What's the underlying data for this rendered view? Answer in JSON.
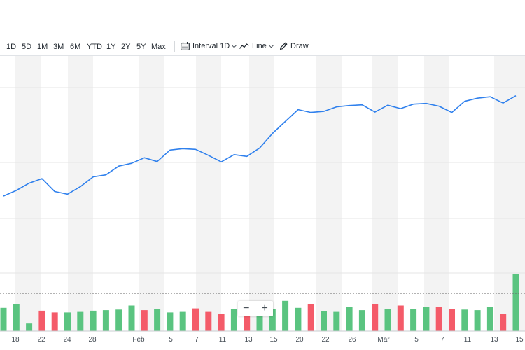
{
  "toolbar": {
    "ranges": [
      "1D",
      "5D",
      "1M",
      "3M",
      "6M",
      "YTD",
      "1Y",
      "2Y",
      "5Y",
      "Max"
    ],
    "interval_label": "Interval",
    "interval_value": "1D",
    "chart_type_label": "Line",
    "draw_label": "Draw",
    "icons": {
      "interval": "calendar-icon",
      "chart_type": "line-chart-icon",
      "draw": "pencil-icon",
      "caret": "chevron-down-icon"
    }
  },
  "zoom": {
    "minus": "−",
    "plus": "+"
  },
  "colors": {
    "line": "#2f80ed",
    "volume_up": "#5ac480",
    "volume_down": "#f45b69",
    "stripe": "#f3f3f3",
    "grid": "#e6e6e6",
    "axis_text": "#464e56"
  },
  "chart_data": {
    "type": "line",
    "x_ticks": [
      "18",
      "22",
      "24",
      "28",
      "Feb",
      "5",
      "7",
      "11",
      "13",
      "15",
      "20",
      "22",
      "26",
      "Mar",
      "5",
      "7",
      "11",
      "13",
      "15"
    ],
    "price": [
      0.0,
      0.8,
      1.85,
      2.5,
      0.65,
      0.27,
      1.35,
      2.75,
      3.05,
      4.3,
      4.7,
      5.5,
      4.95,
      6.6,
      6.8,
      6.7,
      5.85,
      4.9,
      5.95,
      5.7,
      6.9,
      9.0,
      10.7,
      12.4,
      12.0,
      12.15,
      12.8,
      13.0,
      13.1,
      12.05,
      13.05,
      12.55,
      13.2,
      13.3,
      12.9,
      12.0,
      13.6,
      14.05,
      14.25,
      13.35,
      14.4
    ],
    "volume": [
      4.0,
      4.6,
      1.3,
      3.5,
      3.2,
      3.2,
      3.3,
      3.5,
      3.6,
      3.7,
      4.4,
      3.6,
      3.8,
      3.2,
      3.3,
      3.9,
      3.3,
      2.9,
      3.8,
      3.0,
      4.7,
      3.8,
      5.2,
      4.0,
      4.6,
      3.4,
      3.3,
      4.1,
      3.6,
      4.7,
      3.8,
      4.4,
      3.8,
      4.1,
      4.2,
      3.8,
      3.7,
      3.6,
      4.2,
      3.0,
      9.8
    ],
    "volume_up": [
      true,
      true,
      true,
      false,
      false,
      true,
      true,
      true,
      true,
      true,
      true,
      false,
      true,
      true,
      true,
      false,
      false,
      false,
      true,
      false,
      true,
      true,
      true,
      true,
      false,
      true,
      true,
      true,
      true,
      false,
      true,
      false,
      true,
      true,
      false,
      false,
      true,
      true,
      true,
      false,
      true
    ]
  }
}
